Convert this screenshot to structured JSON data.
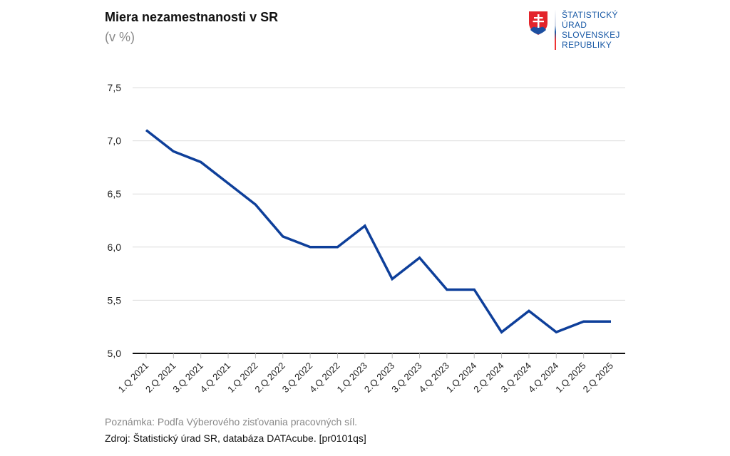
{
  "title": "Miera nezamestnanosti v SR",
  "subtitle": "(v %)",
  "logo": {
    "lines": [
      "ŠTATISTICKÝ",
      "ÚRAD",
      "SLOVENSKEJ",
      "REPUBLIKY"
    ]
  },
  "note": "Poznámka: Podľa Výberového zisťovania pracovných síl.",
  "source": "Zdroj: Štatistický úrad SR, databáza DATAcube. [pr0101qs]",
  "chart_data": {
    "type": "line",
    "title": "Miera nezamestnanosti v SR",
    "ylabel": "(v %)",
    "ylim": [
      5.0,
      7.5
    ],
    "yticks": [
      "5,0",
      "5,5",
      "6,0",
      "6,5",
      "7,0",
      "7,5"
    ],
    "grid": true,
    "color": "#0e3f9a",
    "categories": [
      "1.Q 2021",
      "2.Q 2021",
      "3.Q 2021",
      "4.Q 2021",
      "1.Q 2022",
      "2.Q 2022",
      "3.Q 2022",
      "4.Q 2022",
      "1.Q 2023",
      "2.Q 2023",
      "3.Q 2023",
      "4.Q 2023",
      "1.Q 2024",
      "2.Q 2024",
      "3.Q 2024",
      "4.Q 2024",
      "1.Q 2025",
      "2.Q 2025"
    ],
    "values": [
      7.1,
      6.9,
      6.8,
      6.6,
      6.4,
      6.1,
      6.0,
      6.0,
      6.2,
      5.7,
      5.9,
      5.6,
      5.6,
      5.2,
      5.4,
      5.2,
      5.3,
      5.3
    ]
  }
}
